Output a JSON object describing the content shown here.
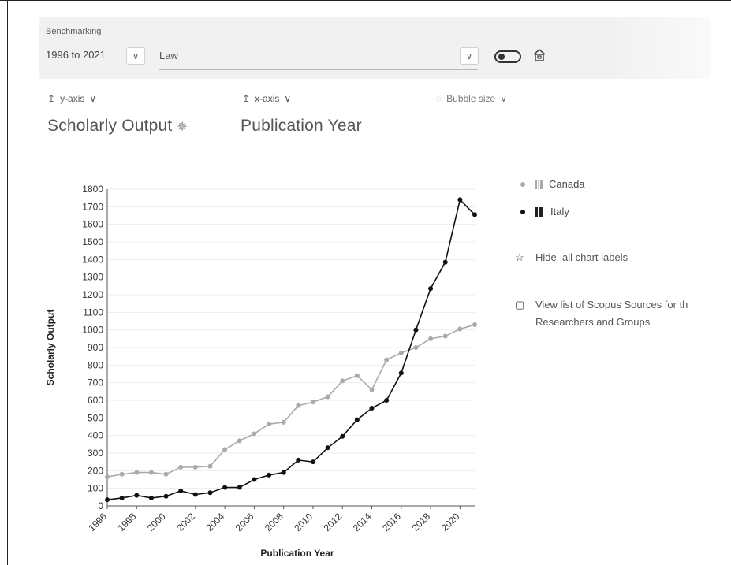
{
  "benchmarking": {
    "title": "Benchmarking",
    "range": "1996 to 2021",
    "subject": "Law",
    "chevron": "chevron-down-icon"
  },
  "axes": {
    "y_selector": "y-axis",
    "x_selector": "x-axis",
    "bubble_selector": "Bubble size",
    "y_metric": "Scholarly Output",
    "x_metric": "Publication Year"
  },
  "legend": {
    "items": [
      {
        "label": "Canada",
        "color": "#aaaaaa"
      },
      {
        "label": "Italy",
        "color": "#111111"
      }
    ]
  },
  "side_links": {
    "hide_labels": "Hide",
    "hide_labels_rest": "all chart labels",
    "scopus_line1": "View list of Scopus Sources for th",
    "scopus_line2": "Researchers and Groups"
  },
  "chart_data": {
    "type": "line",
    "xlabel": "Publication Year",
    "ylabel": "Scholarly Output",
    "ylim": [
      0,
      1800
    ],
    "xlim": [
      1996,
      2021
    ],
    "yticks": [
      0,
      100,
      200,
      300,
      400,
      500,
      600,
      700,
      800,
      900,
      1000,
      1100,
      1200,
      1300,
      1400,
      1500,
      1600,
      1700,
      1800
    ],
    "xticks": [
      "1996",
      "1998",
      "2000",
      "2002",
      "2004",
      "2006",
      "2008",
      "2010",
      "2012",
      "2014",
      "2016",
      "2018",
      "2020"
    ],
    "grid": true,
    "legend_position": "right",
    "x": [
      1996,
      1997,
      1998,
      1999,
      2000,
      2001,
      2002,
      2003,
      2004,
      2005,
      2006,
      2007,
      2008,
      2009,
      2010,
      2011,
      2012,
      2013,
      2014,
      2015,
      2016,
      2017,
      2018,
      2019,
      2020,
      2021
    ],
    "series": [
      {
        "name": "Canada",
        "color": "#aaaaaa",
        "values": [
          165,
          180,
          190,
          190,
          180,
          220,
          220,
          225,
          320,
          370,
          410,
          465,
          475,
          570,
          590,
          620,
          710,
          740,
          660,
          830,
          870,
          900,
          950,
          965,
          1005,
          1030
        ]
      },
      {
        "name": "Italy",
        "color": "#111111",
        "values": [
          35,
          45,
          60,
          45,
          55,
          85,
          65,
          75,
          105,
          105,
          150,
          175,
          190,
          260,
          250,
          330,
          395,
          490,
          555,
          600,
          755,
          1000,
          1235,
          1385,
          1740,
          1655
        ]
      }
    ]
  }
}
